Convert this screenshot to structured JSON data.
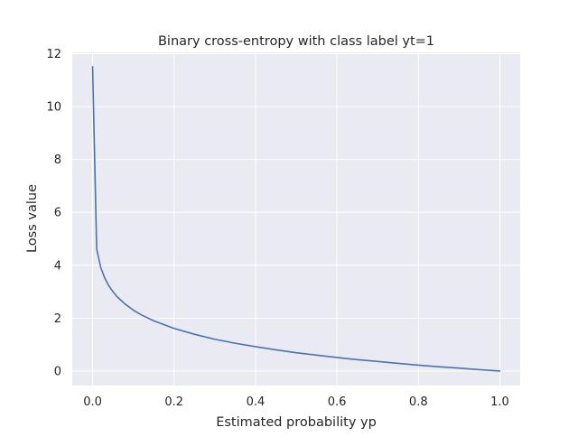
{
  "chart_data": {
    "type": "line",
    "title": "Binary cross-entropy with class label yt=1",
    "xlabel": "Estimated probability yp",
    "ylabel": "Loss value",
    "xlim": [
      -0.05,
      1.05
    ],
    "ylim": [
      -0.55,
      12.05
    ],
    "x_ticks": [
      0.0,
      0.2,
      0.4,
      0.6,
      0.8,
      1.0
    ],
    "x_tick_labels": [
      "0.0",
      "0.2",
      "0.4",
      "0.6",
      "0.8",
      "1.0"
    ],
    "y_ticks": [
      0,
      2,
      4,
      6,
      8,
      10,
      12
    ],
    "y_tick_labels": [
      "0",
      "2",
      "4",
      "6",
      "8",
      "10",
      "12"
    ],
    "grid": true,
    "colors": {
      "plot_background": "#eaeaf2",
      "grid": "#ffffff",
      "line": "#4c72b0",
      "text": "#262626"
    },
    "series": [
      {
        "x": [
          0.0,
          0.01,
          0.02,
          0.03,
          0.04,
          0.05,
          0.06,
          0.08,
          0.1,
          0.12,
          0.15,
          0.2,
          0.25,
          0.3,
          0.35,
          0.4,
          0.45,
          0.5,
          0.55,
          0.6,
          0.65,
          0.7,
          0.75,
          0.8,
          0.85,
          0.9,
          0.95,
          1.0
        ],
        "y": [
          11.51,
          4.61,
          3.91,
          3.51,
          3.22,
          3.0,
          2.81,
          2.53,
          2.3,
          2.12,
          1.9,
          1.61,
          1.39,
          1.2,
          1.05,
          0.92,
          0.8,
          0.69,
          0.6,
          0.51,
          0.43,
          0.36,
          0.29,
          0.22,
          0.16,
          0.11,
          0.05,
          0.0
        ]
      }
    ]
  }
}
